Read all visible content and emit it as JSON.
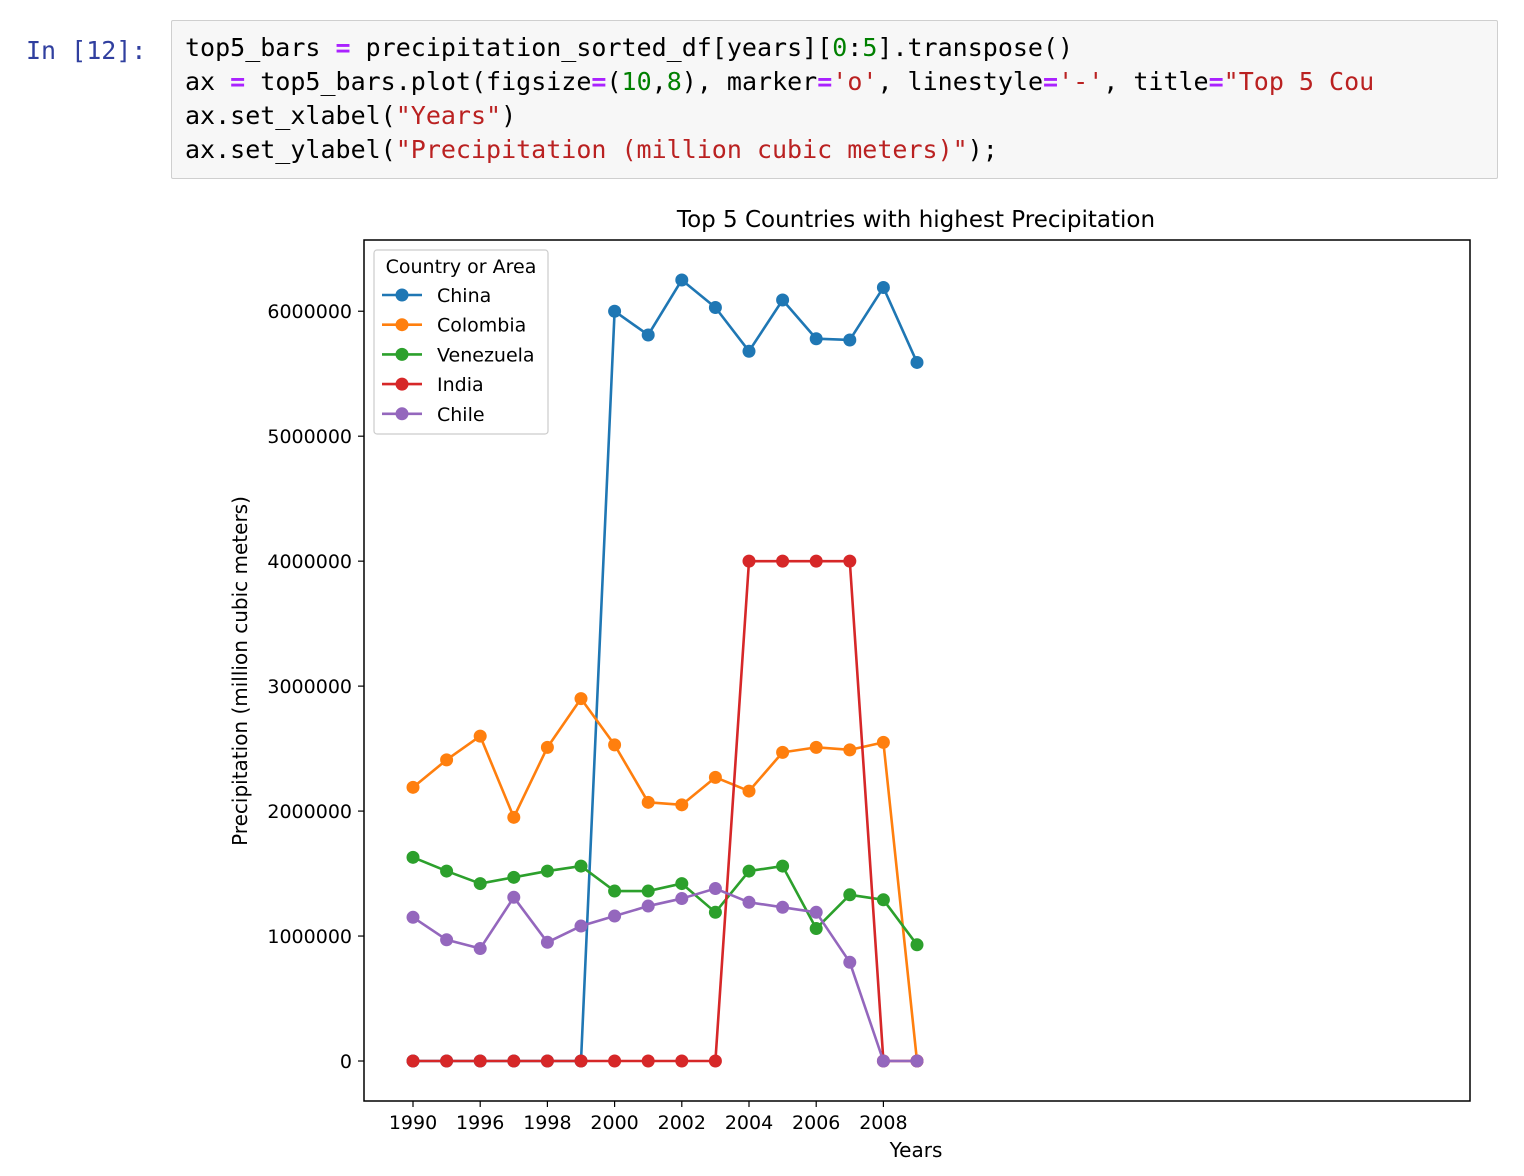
{
  "cell": {
    "prompt": "In [12]:",
    "code_lines": [
      [
        {
          "t": "top5_bars "
        },
        {
          "t": "=",
          "c": "o"
        },
        {
          "t": " precipitation_sorted_df[years]["
        },
        {
          "t": "0",
          "c": "n"
        },
        {
          "t": ":"
        },
        {
          "t": "5",
          "c": "n"
        },
        {
          "t": "].transpose()"
        }
      ],
      [
        {
          "t": "ax "
        },
        {
          "t": "=",
          "c": "o"
        },
        {
          "t": " top5_bars.plot(figsize"
        },
        {
          "t": "=",
          "c": "o"
        },
        {
          "t": "("
        },
        {
          "t": "10",
          "c": "n"
        },
        {
          "t": ","
        },
        {
          "t": "8",
          "c": "n"
        },
        {
          "t": "), marker"
        },
        {
          "t": "=",
          "c": "o"
        },
        {
          "t": "'o'",
          "c": "s"
        },
        {
          "t": ", linestyle"
        },
        {
          "t": "=",
          "c": "o"
        },
        {
          "t": "'-'",
          "c": "s"
        },
        {
          "t": ", title"
        },
        {
          "t": "=",
          "c": "o"
        },
        {
          "t": "\"Top 5 Cou",
          "c": "s"
        }
      ],
      [
        {
          "t": "ax.set_xlabel("
        },
        {
          "t": "\"Years\"",
          "c": "s"
        },
        {
          "t": ")"
        }
      ],
      [
        {
          "t": "ax.set_ylabel("
        },
        {
          "t": "\"Precipitation (million cubic meters)\"",
          "c": "s"
        },
        {
          "t": ");"
        }
      ]
    ]
  },
  "chart_data": {
    "type": "line",
    "title": "Top 5 Countries with highest Precipitation",
    "xlabel": "Years",
    "ylabel": "Precipitation (million cubic meters)",
    "x": [
      "1990",
      "1995",
      "1996",
      "1997",
      "1998",
      "1999",
      "2000",
      "2001",
      "2002",
      "2003",
      "2004",
      "2005",
      "2006",
      "2007",
      "2008",
      "2009"
    ],
    "x_tick_labels": [
      "1990",
      "1996",
      "1998",
      "2000",
      "2002",
      "2004",
      "2006",
      "2008"
    ],
    "x_tick_indices": [
      0,
      2,
      4,
      6,
      8,
      10,
      12,
      14
    ],
    "y_ticks": [
      0,
      1000000,
      2000000,
      3000000,
      4000000,
      5000000,
      6000000
    ],
    "y_tick_labels": [
      "0",
      "1000000",
      "2000000",
      "3000000",
      "4000000",
      "5000000",
      "6000000"
    ],
    "ylim": [
      -320000,
      6570000
    ],
    "grid": false,
    "legend": {
      "title": "Country or Area",
      "placement": "top-left"
    },
    "markers": true,
    "series": [
      {
        "name": "China",
        "color": "#1f77b4",
        "values": [
          0,
          0,
          0,
          0,
          0,
          0,
          6000000,
          5810000,
          6250000,
          6030000,
          5680000,
          6090000,
          5780000,
          5770000,
          6190000,
          5590000
        ]
      },
      {
        "name": "Colombia",
        "color": "#ff7f0e",
        "values": [
          2190000,
          2410000,
          2600000,
          1950000,
          2510000,
          2900000,
          2530000,
          2070000,
          2050000,
          2270000,
          2160000,
          2470000,
          2510000,
          2490000,
          2550000,
          0
        ]
      },
      {
        "name": "Venezuela",
        "color": "#2ca02c",
        "values": [
          1630000,
          1520000,
          1420000,
          1470000,
          1520000,
          1560000,
          1360000,
          1360000,
          1420000,
          1190000,
          1520000,
          1560000,
          1060000,
          1330000,
          1290000,
          930000
        ]
      },
      {
        "name": "India",
        "color": "#d62728",
        "values": [
          0,
          0,
          0,
          0,
          0,
          0,
          0,
          0,
          0,
          0,
          4000000,
          4000000,
          4000000,
          4000000,
          0,
          0
        ]
      },
      {
        "name": "Chile",
        "color": "#9467bd",
        "values": [
          1150000,
          970000,
          900000,
          1310000,
          950000,
          1080000,
          1160000,
          1240000,
          1300000,
          1380000,
          1270000,
          1230000,
          1190000,
          790000,
          0,
          0
        ]
      }
    ]
  }
}
